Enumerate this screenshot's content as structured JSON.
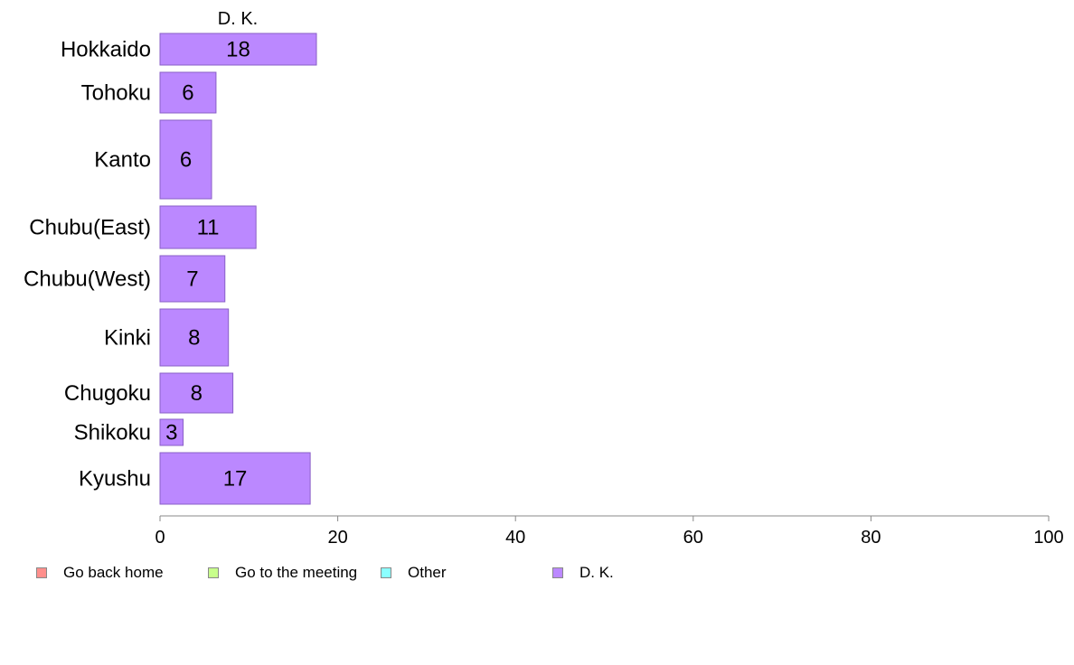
{
  "chart_data": {
    "type": "bar",
    "orientation": "horizontal",
    "categories": [
      "Hokkaido",
      "Tohoku",
      "Kanto",
      "Chubu(East)",
      "Chubu(West)",
      "Kinki",
      "Chugoku",
      "Shikoku",
      "Kyushu"
    ],
    "series": [
      {
        "name": "D. K.",
        "values": [
          18,
          6,
          6,
          11,
          7,
          8,
          8,
          3,
          17
        ],
        "color": "#bb88ff"
      }
    ],
    "data_labels": [
      "18",
      "6",
      "6",
      "11",
      "7",
      "8",
      "8",
      "3",
      "17"
    ],
    "data_values_exact": [
      17.6,
      6.3,
      5.8,
      10.8,
      7.3,
      7.7,
      8.2,
      2.6,
      16.9
    ],
    "xlim": [
      0,
      100
    ],
    "xticks": [
      0,
      20,
      40,
      60,
      80,
      100
    ],
    "grid": false,
    "legend": {
      "placement": "bottom-left",
      "entries": [
        {
          "label": "Go back home",
          "color": "#ff8f8c"
        },
        {
          "label": "Go to the meeting",
          "color": "#c8ff8c"
        },
        {
          "label": "Other",
          "color": "#8cffff"
        },
        {
          "label": "D. K.",
          "color": "#bb88ff"
        }
      ]
    }
  }
}
